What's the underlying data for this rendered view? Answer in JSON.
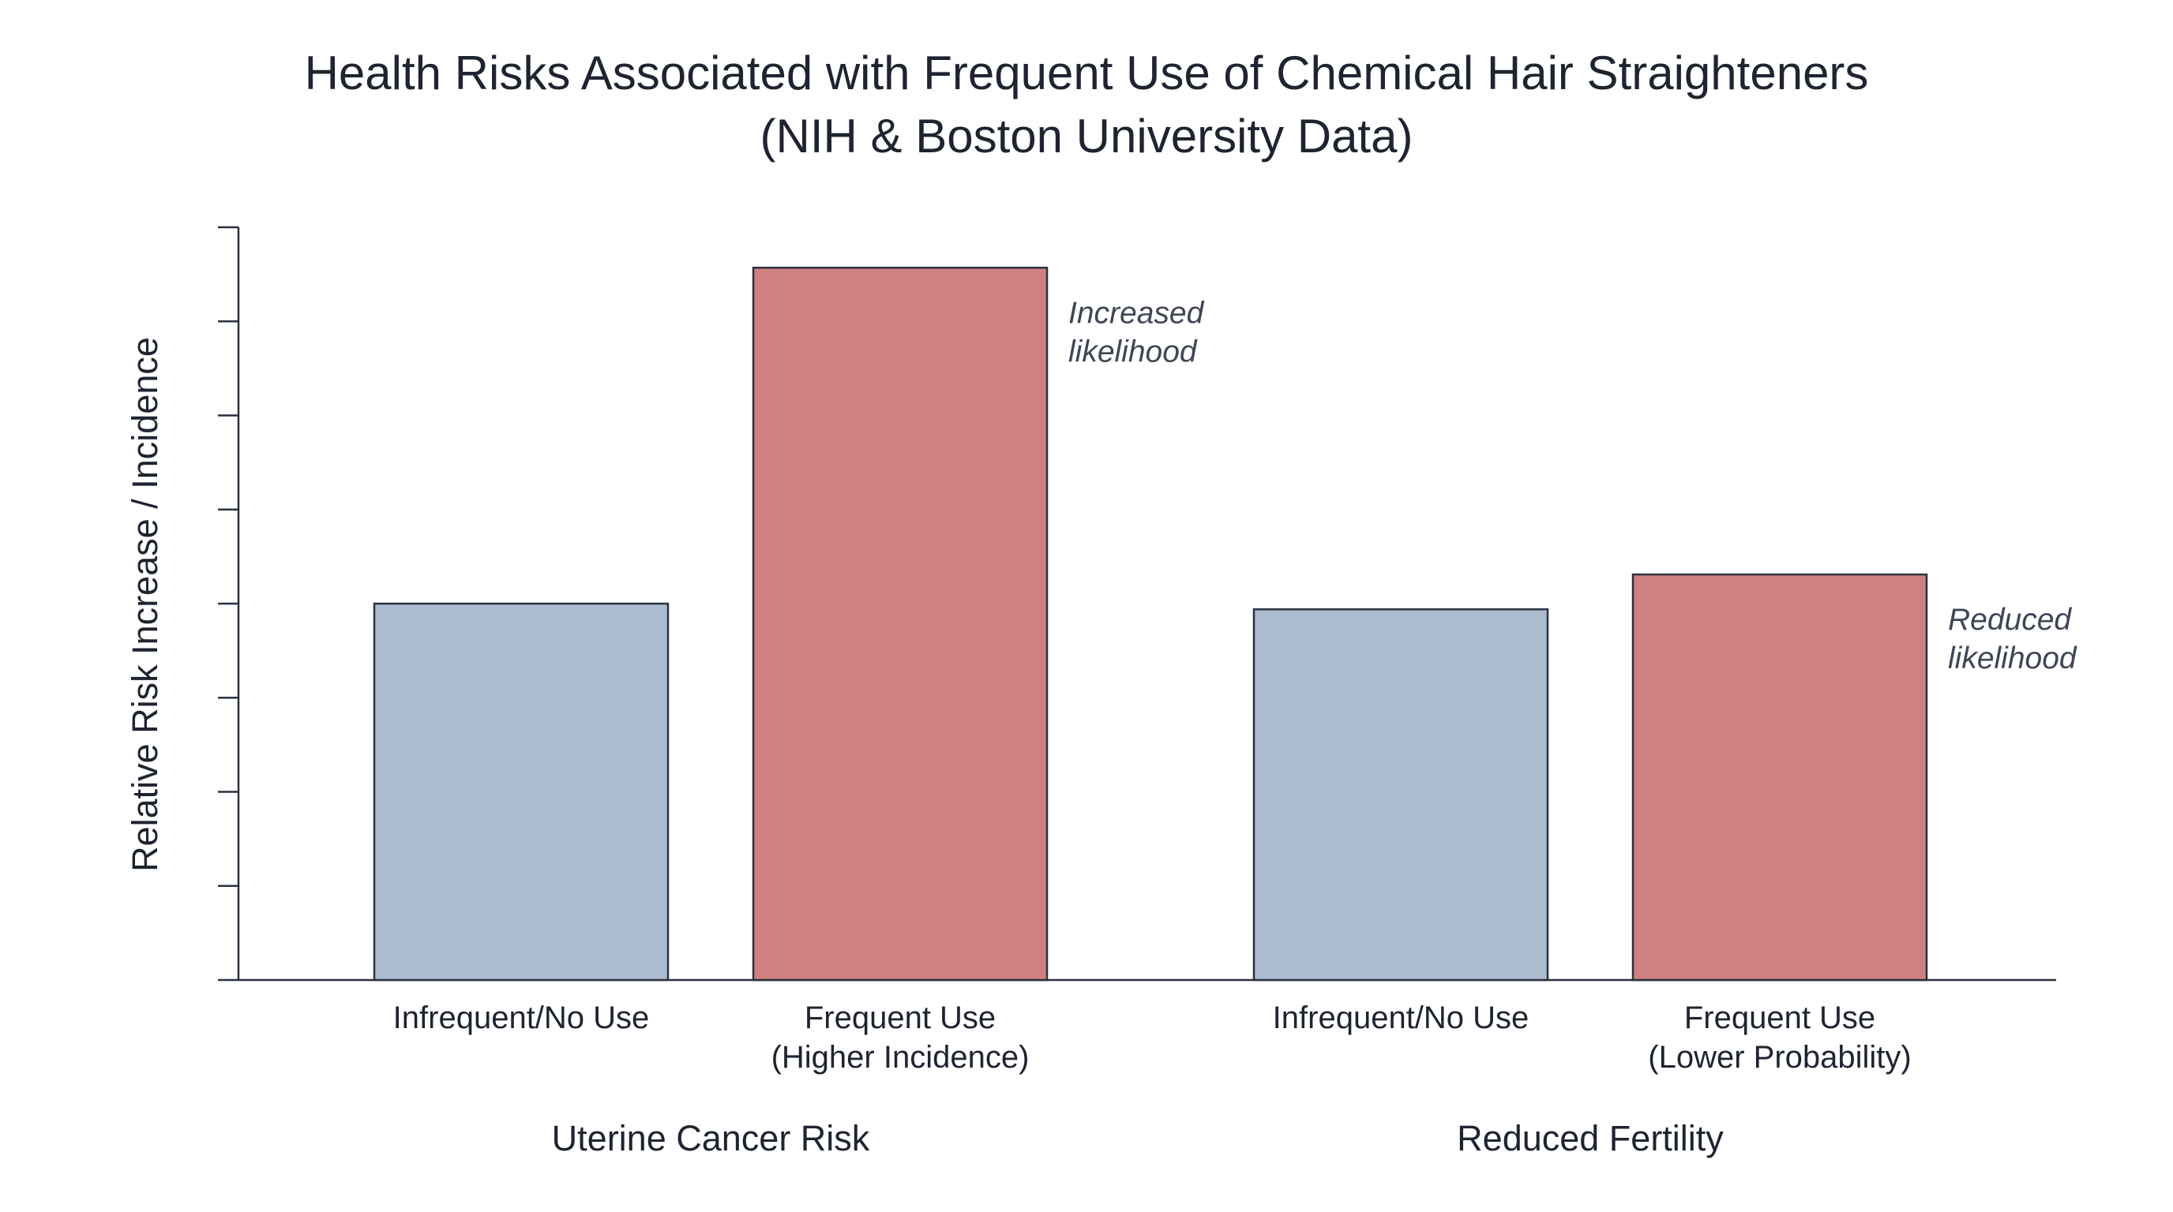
{
  "chart_data": {
    "type": "bar",
    "title": "Health Risks Associated with Frequent Use of Chemical Hair Straighteners",
    "subtitle": "(NIH & Boston University Data)",
    "ylabel": "Relative Risk Increase / Incidence",
    "xlabel": "",
    "ylim": [
      0,
      8
    ],
    "ytick_count": 8,
    "grid": false,
    "colors": {
      "infrequent": "#abbccf",
      "frequent": "#cf8080"
    },
    "groups": [
      {
        "name": "Uterine Cancer Risk",
        "annotation": [
          "Increased",
          "likelihood"
        ],
        "bars": [
          {
            "label": [
              "Infrequent/No Use"
            ],
            "value": 4.0,
            "kind": "infrequent"
          },
          {
            "label": [
              "Frequent Use",
              "(Higher Incidence)"
            ],
            "value": 7.57,
            "kind": "frequent"
          }
        ]
      },
      {
        "name": "Reduced Fertility",
        "annotation": [
          "Reduced",
          "likelihood"
        ],
        "bars": [
          {
            "label": [
              "Infrequent/No Use"
            ],
            "value": 3.94,
            "kind": "infrequent"
          },
          {
            "label": [
              "Frequent Use",
              "(Lower Probability)"
            ],
            "value": 4.31,
            "kind": "frequent"
          }
        ]
      }
    ]
  }
}
